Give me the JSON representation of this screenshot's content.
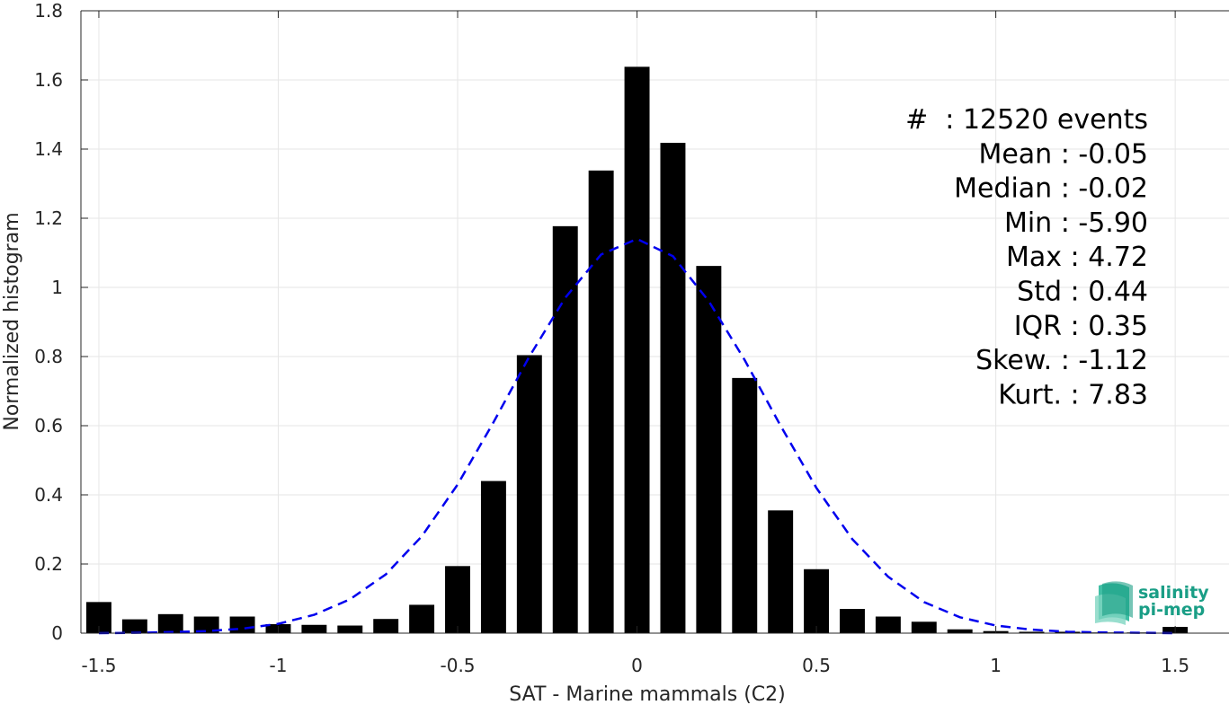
{
  "chart_data": {
    "type": "bar",
    "xlabel": "SAT - Marine mammals (C2)",
    "ylabel": "Normalized histogram",
    "xlim": [
      -1.55,
      1.65
    ],
    "ylim": [
      0,
      1.8
    ],
    "xticks": [
      -1.5,
      -1,
      -0.5,
      0,
      0.5,
      1,
      1.5
    ],
    "xtick_labels": [
      "-1.5",
      "-1",
      "-0.5",
      "0",
      "0.5",
      "1",
      "1.5"
    ],
    "yticks": [
      0,
      0.2,
      0.4,
      0.6,
      0.8,
      1,
      1.2,
      1.4,
      1.6,
      1.8
    ],
    "ytick_labels": [
      "0",
      "0.2",
      "0.4",
      "0.6",
      "0.8",
      "1",
      "1.2",
      "1.4",
      "1.6",
      "1.8"
    ],
    "grid": true,
    "bar_color": "#000000",
    "fit_color": "#0000ee",
    "bar_width": 0.07,
    "bars": {
      "x": [
        -1.5,
        -1.4,
        -1.3,
        -1.2,
        -1.1,
        -1.0,
        -0.9,
        -0.8,
        -0.7,
        -0.6,
        -0.5,
        -0.4,
        -0.3,
        -0.2,
        -0.1,
        0.0,
        0.1,
        0.2,
        0.3,
        0.4,
        0.5,
        0.6,
        0.7,
        0.8,
        0.9,
        1.0,
        1.1,
        1.2,
        1.3,
        1.4,
        1.5
      ],
      "y": [
        0.09,
        0.04,
        0.055,
        0.048,
        0.048,
        0.026,
        0.024,
        0.022,
        0.041,
        0.082,
        0.194,
        0.44,
        0.804,
        1.177,
        1.338,
        1.638,
        1.418,
        1.062,
        0.738,
        0.355,
        0.185,
        0.07,
        0.048,
        0.033,
        0.011,
        0.006,
        0.004,
        0.004,
        0.002,
        0.002,
        0.018
      ]
    },
    "fit_curve": {
      "style": "dashed",
      "x": [
        -1.5,
        -1.4,
        -1.3,
        -1.2,
        -1.1,
        -1.0,
        -0.9,
        -0.8,
        -0.7,
        -0.6,
        -0.5,
        -0.4,
        -0.3,
        -0.2,
        -0.1,
        0.0,
        0.1,
        0.2,
        0.3,
        0.4,
        0.5,
        0.6,
        0.7,
        0.8,
        0.9,
        1.0,
        1.1,
        1.2,
        1.3,
        1.4,
        1.5
      ],
      "y": [
        0.0,
        0.001,
        0.003,
        0.006,
        0.013,
        0.027,
        0.053,
        0.098,
        0.17,
        0.28,
        0.43,
        0.61,
        0.8,
        0.97,
        1.095,
        1.14,
        1.09,
        0.96,
        0.79,
        0.6,
        0.42,
        0.272,
        0.163,
        0.09,
        0.046,
        0.022,
        0.01,
        0.004,
        0.002,
        0.001,
        0.0
      ]
    },
    "annotations": [
      "#  : 12520 events",
      "Mean : -0.05",
      "Median : -0.02",
      "Min : -5.90",
      "Max : 4.72",
      "Std : 0.44",
      "IQR : 0.35",
      "Skew. : -1.12",
      "Kurt. : 7.83"
    ]
  },
  "logo": {
    "line1": "salinity",
    "line2": "pi-mep",
    "color": "#1a9e86"
  }
}
